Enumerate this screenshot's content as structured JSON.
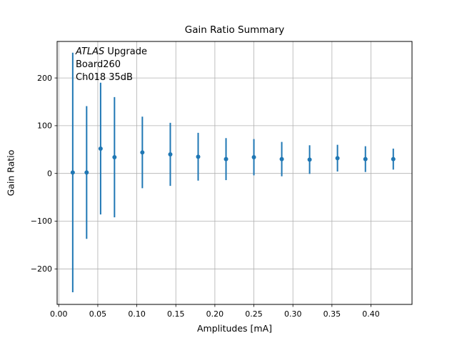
{
  "figure": {
    "background": "#ffffff",
    "frame_color": "#000000",
    "grid_color": "#b0b0b0"
  },
  "chart_data": {
    "type": "scatter",
    "subtype": "errorbar",
    "title": "Gain Ratio Summary",
    "xlabel": "Amplitudes [mA]",
    "ylabel": "Gain Ratio",
    "annotation": {
      "line1_italic": "ATLAS",
      "line1_rest": " Upgrade",
      "line2": "Board260",
      "line3": "Ch018 35dB"
    },
    "legend": "none",
    "grid": true,
    "xlim": [
      -0.0021,
      0.4526
    ],
    "ylim": [
      -274.4,
      276.5
    ],
    "xticks": [
      0.0,
      0.05,
      0.1,
      0.15,
      0.2,
      0.25,
      0.3,
      0.35,
      0.4
    ],
    "xtick_labels": [
      "0.00",
      "0.05",
      "0.10",
      "0.15",
      "0.20",
      "0.25",
      "0.30",
      "0.35",
      "0.40"
    ],
    "yticks": [
      -200,
      -100,
      0,
      100,
      200
    ],
    "ytick_labels": [
      "−200",
      "−100",
      "0",
      "100",
      "200"
    ],
    "series": [
      {
        "name": "gain-ratio",
        "color": "#1f77b4",
        "marker": "point",
        "x": [
          0.0179,
          0.0357,
          0.0536,
          0.0714,
          0.1071,
          0.1429,
          0.1786,
          0.2143,
          0.25,
          0.2857,
          0.3214,
          0.3571,
          0.3929,
          0.4286
        ],
        "y": [
          2,
          2,
          52,
          34,
          44,
          40,
          35,
          30,
          34,
          30,
          29,
          32,
          30,
          30
        ],
        "yerr": [
          251,
          139,
          138,
          126,
          75,
          66,
          50,
          44,
          38,
          36,
          30,
          28,
          27,
          22
        ]
      }
    ]
  }
}
